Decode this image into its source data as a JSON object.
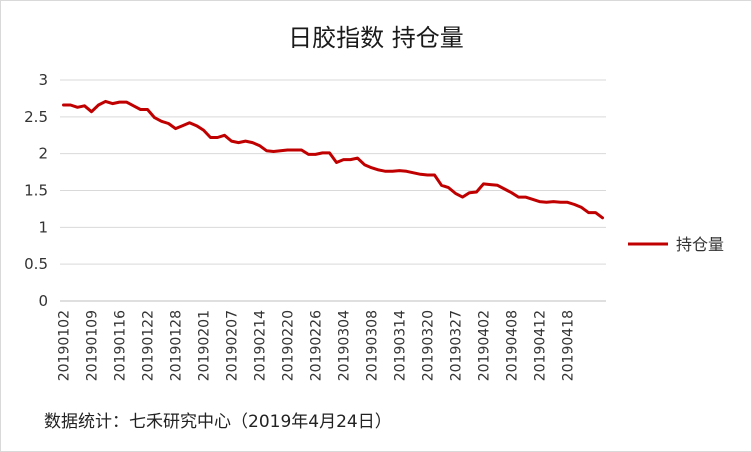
{
  "chart_data": {
    "type": "line",
    "title": "日胶指数 持仓量",
    "xlabel": "",
    "ylabel": "",
    "ylim": [
      0,
      3
    ],
    "yticks": [
      "0",
      "0.5",
      "1",
      "1.5",
      "2",
      "2.5",
      "3"
    ],
    "grid": true,
    "legend_position": "right",
    "color": "#c00000",
    "x_tick_labels": [
      "20190102",
      "20190109",
      "20190116",
      "20190122",
      "20190128",
      "20190201",
      "20190207",
      "20190214",
      "20190220",
      "20190226",
      "20190304",
      "20190308",
      "20190314",
      "20190320",
      "20190327",
      "20190402",
      "20190408",
      "20190412",
      "20190418"
    ],
    "series": [
      {
        "name": "持仓量",
        "values": [
          2.66,
          2.66,
          2.63,
          2.65,
          2.57,
          2.66,
          2.71,
          2.68,
          2.7,
          2.7,
          2.65,
          2.6,
          2.6,
          2.49,
          2.44,
          2.41,
          2.34,
          2.38,
          2.42,
          2.38,
          2.32,
          2.22,
          2.22,
          2.25,
          2.17,
          2.15,
          2.17,
          2.15,
          2.11,
          2.04,
          2.03,
          2.04,
          2.05,
          2.05,
          2.05,
          1.99,
          1.99,
          2.01,
          2.01,
          1.88,
          1.92,
          1.92,
          1.94,
          1.85,
          1.81,
          1.78,
          1.76,
          1.76,
          1.77,
          1.76,
          1.74,
          1.72,
          1.71,
          1.71,
          1.57,
          1.54,
          1.46,
          1.41,
          1.47,
          1.48,
          1.59,
          1.58,
          1.57,
          1.52,
          1.47,
          1.41,
          1.41,
          1.38,
          1.35,
          1.34,
          1.35,
          1.34,
          1.34,
          1.31,
          1.27,
          1.2,
          1.2,
          1.13
        ]
      }
    ]
  },
  "footer": {
    "source": "数据统计：七禾研究中心（2019年4月24日）"
  }
}
